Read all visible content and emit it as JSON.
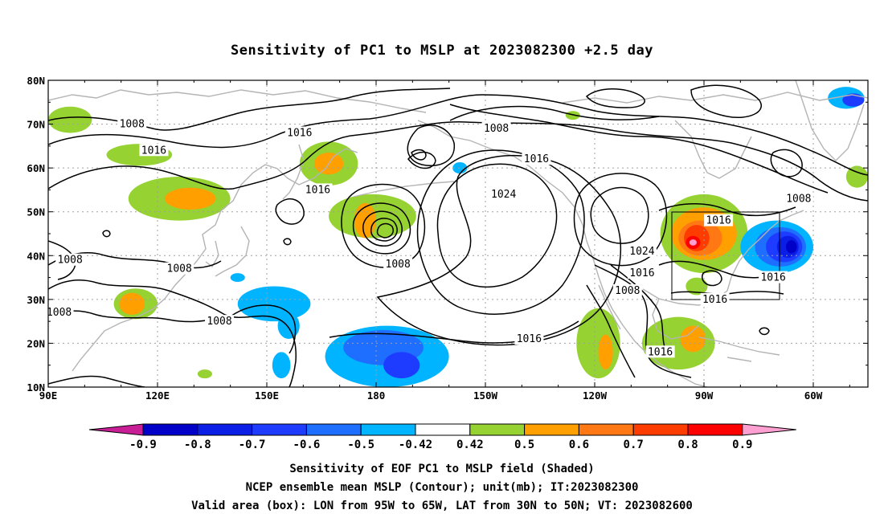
{
  "title": "Sensitivity of PC1 to MSLP at 2023082300 +2.5 day",
  "map": {
    "lat_ticks": [
      "80N",
      "70N",
      "60N",
      "50N",
      "40N",
      "30N",
      "20N",
      "10N"
    ],
    "lon_ticks": [
      "90E",
      "120E",
      "150E",
      "180",
      "150W",
      "120W",
      "90W",
      "60W"
    ],
    "lon_range": [
      "90E",
      "45W"
    ],
    "lat_range": [
      "10N",
      "80N"
    ],
    "grid": "dotted",
    "valid_box": {
      "lon": [
        "95W",
        "65W"
      ],
      "lat": [
        "30N",
        "50N"
      ]
    },
    "coastline_color": "#b4b4b4",
    "contour_color": "#000000"
  },
  "contour_labels": [
    {
      "text": "1008",
      "lon": 113,
      "lat": 70
    },
    {
      "text": "1016",
      "lon": 119,
      "lat": 64
    },
    {
      "text": "1016",
      "lon": 159,
      "lat": 68
    },
    {
      "text": "1008",
      "lon": -147,
      "lat": 69
    },
    {
      "text": "1016",
      "lon": 164,
      "lat": 55
    },
    {
      "text": "1016",
      "lon": -136,
      "lat": 62
    },
    {
      "text": "1024",
      "lon": -145,
      "lat": 54
    },
    {
      "text": "1008",
      "lon": -64,
      "lat": 53
    },
    {
      "text": "1016",
      "lon": -86,
      "lat": 48
    },
    {
      "text": "1024",
      "lon": -107,
      "lat": 41
    },
    {
      "text": "1008",
      "lon": 96,
      "lat": 39
    },
    {
      "text": "1008",
      "lon": 126,
      "lat": 37
    },
    {
      "text": "1008",
      "lon": 186,
      "lat": 38
    },
    {
      "text": "1016",
      "lon": -107,
      "lat": 36
    },
    {
      "text": "1008",
      "lon": -111,
      "lat": 32
    },
    {
      "text": "1016",
      "lon": -71,
      "lat": 35
    },
    {
      "text": "1016",
      "lon": -87,
      "lat": 30
    },
    {
      "text": "1008",
      "lon": 93,
      "lat": 27
    },
    {
      "text": "1008",
      "lon": 137,
      "lat": 25
    },
    {
      "text": "1016",
      "lon": -138,
      "lat": 21
    },
    {
      "text": "1016",
      "lon": -102,
      "lat": 18
    }
  ],
  "shaded_regions": [
    {
      "lon": 96,
      "lat": 71,
      "rx": 6,
      "ry": 3,
      "level": 0.42
    },
    {
      "lon": 115,
      "lat": 63,
      "rx": 9,
      "ry": 2.5,
      "level": 0.42
    },
    {
      "lon": 126,
      "lat": 53,
      "rx": 14,
      "ry": 5,
      "level": 0.42
    },
    {
      "lon": 129,
      "lat": 53,
      "rx": 7,
      "ry": 2.5,
      "level": 0.5
    },
    {
      "lon": 167,
      "lat": 61,
      "rx": 8,
      "ry": 5,
      "level": 0.42
    },
    {
      "lon": 167,
      "lat": 61,
      "rx": 4,
      "ry": 2.5,
      "level": 0.5
    },
    {
      "lon": 179,
      "lat": 49,
      "rx": 12,
      "ry": 5,
      "level": 0.42
    },
    {
      "lon": 177,
      "lat": 48,
      "rx": 3,
      "ry": 4,
      "level": 0.5
    },
    {
      "lon": 114,
      "lat": 29,
      "rx": 6,
      "ry": 3.5,
      "level": 0.42
    },
    {
      "lon": 113,
      "lat": 29,
      "rx": 3.5,
      "ry": 2.5,
      "level": 0.5
    },
    {
      "lon": 133,
      "lat": 13,
      "rx": 2,
      "ry": 1,
      "level": 0.42
    },
    {
      "lon": 152,
      "lat": 29,
      "rx": 10,
      "ry": 4,
      "level": -0.42
    },
    {
      "lon": 156,
      "lat": 24,
      "rx": 3,
      "ry": 3,
      "level": -0.42
    },
    {
      "lon": 154,
      "lat": 15,
      "rx": 2.5,
      "ry": 3,
      "level": -0.42
    },
    {
      "lon": 183,
      "lat": 17,
      "rx": 17,
      "ry": 7,
      "level": -0.42
    },
    {
      "lon": 182,
      "lat": 19,
      "rx": 11,
      "ry": 4,
      "level": -0.5
    },
    {
      "lon": 187,
      "lat": 15,
      "rx": 5,
      "ry": 3,
      "level": -0.6
    },
    {
      "lon": 142,
      "lat": 35,
      "rx": 2,
      "ry": 1,
      "level": -0.42
    },
    {
      "lon": -157,
      "lat": 60,
      "rx": 2,
      "ry": 1.3,
      "level": -0.42
    },
    {
      "lon": -119,
      "lat": 20,
      "rx": 6,
      "ry": 8,
      "level": 0.42
    },
    {
      "lon": -117,
      "lat": 18,
      "rx": 2,
      "ry": 4,
      "level": 0.5
    },
    {
      "lon": -97,
      "lat": 20,
      "rx": 10,
      "ry": 6,
      "level": 0.42
    },
    {
      "lon": -93,
      "lat": 21,
      "rx": 3.5,
      "ry": 3,
      "level": 0.5
    },
    {
      "lon": -90,
      "lat": 45,
      "rx": 12,
      "ry": 9,
      "level": 0.42
    },
    {
      "lon": -90,
      "lat": 45,
      "rx": 9,
      "ry": 6,
      "level": 0.5
    },
    {
      "lon": -91,
      "lat": 44,
      "rx": 6,
      "ry": 4,
      "level": 0.6
    },
    {
      "lon": -92,
      "lat": 44,
      "rx": 3.5,
      "ry": 3,
      "level": 0.7
    },
    {
      "lon": -93,
      "lat": 43,
      "rx": 2,
      "ry": 1.5,
      "level": 0.8
    },
    {
      "lon": -93,
      "lat": 43,
      "rx": 1,
      "ry": 0.7,
      "level": 0.9
    },
    {
      "lon": -92,
      "lat": 33,
      "rx": 3,
      "ry": 2,
      "level": 0.42
    },
    {
      "lon": -70,
      "lat": 42,
      "rx": 10,
      "ry": 6,
      "level": -0.42
    },
    {
      "lon": -69,
      "lat": 42,
      "rx": 7,
      "ry": 4.5,
      "level": -0.5
    },
    {
      "lon": -68,
      "lat": 42,
      "rx": 5,
      "ry": 3.5,
      "level": -0.6
    },
    {
      "lon": -67,
      "lat": 42,
      "rx": 3,
      "ry": 2.5,
      "level": -0.7
    },
    {
      "lon": -66,
      "lat": 42,
      "rx": 1.5,
      "ry": 1.5,
      "level": -0.8
    },
    {
      "lon": -51,
      "lat": 76,
      "rx": 5,
      "ry": 2.5,
      "level": -0.42
    },
    {
      "lon": -49,
      "lat": 75.5,
      "rx": 3,
      "ry": 1.5,
      "level": -0.6
    },
    {
      "lon": -48,
      "lat": 58,
      "rx": 3,
      "ry": 2.5,
      "level": 0.42
    },
    {
      "lon": -126,
      "lat": 72,
      "rx": 2,
      "ry": 1,
      "level": 0.42
    }
  ],
  "colorbar": {
    "levels": [
      "-0.9",
      "-0.8",
      "-0.7",
      "-0.6",
      "-0.5",
      "-0.42",
      "0.42",
      "0.5",
      "0.6",
      "0.7",
      "0.8",
      "0.9"
    ],
    "colors": [
      "#c81e96",
      "#0000c8",
      "#0a1ee6",
      "#1e3cff",
      "#1e6eff",
      "#00b4ff",
      "#ffffff",
      "#96d232",
      "#ffa000",
      "#ff7814",
      "#ff3c00",
      "#ff0000",
      "#ffa0d2"
    ]
  },
  "footer": {
    "line1": "Sensitivity of EOF PC1 to MSLP field (Shaded)",
    "line2": "NCEP ensemble mean MSLP (Contour); unit(mb); IT:2023082300",
    "line3": "Valid area (box): LON from 95W to 65W, LAT from 30N to 50N; VT: 2023082600"
  }
}
